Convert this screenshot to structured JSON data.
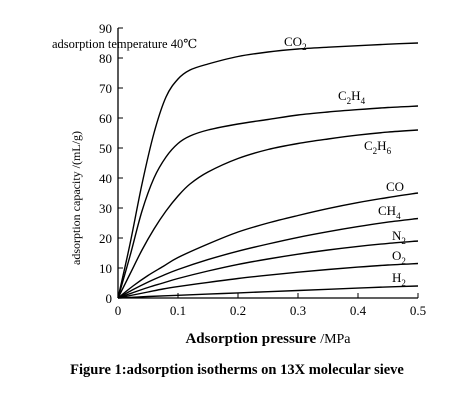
{
  "chart_data": {
    "type": "line",
    "caption": "Figure 1:adsorption isotherms on 13X molecular sieve",
    "annotation": "adsorption temperature 40℃",
    "xlabel": "Adsorption pressure",
    "xunit": "/MPa",
    "ylabel": "adsorption capacity /(mL/g)",
    "xlim": [
      0,
      0.5
    ],
    "ylim": [
      0,
      90
    ],
    "xticks": [
      0,
      0.1,
      0.2,
      0.3,
      0.4,
      0.5
    ],
    "xtick_labels": [
      "0",
      "0.1",
      "0.2",
      "0.3",
      "0.4",
      "0.5"
    ],
    "yticks": [
      0,
      10,
      20,
      30,
      40,
      50,
      60,
      70,
      80,
      90
    ],
    "ytick_labels": [
      "0",
      "10",
      "20",
      "30",
      "40",
      "50",
      "60",
      "70",
      "80",
      "90"
    ],
    "grid": false,
    "legend": "inline labels at curve ends",
    "series": [
      {
        "name": "CO2",
        "base": "CO",
        "subscript": "2",
        "x": [
          0,
          0.02,
          0.04,
          0.06,
          0.08,
          0.1,
          0.12,
          0.15,
          0.2,
          0.25,
          0.3,
          0.35,
          0.4,
          0.45,
          0.5
        ],
        "y": [
          0,
          18,
          38,
          55,
          67,
          73,
          76,
          78,
          80.5,
          82,
          83,
          83.6,
          84.1,
          84.6,
          85
        ]
      },
      {
        "name": "C2H4",
        "base": "C",
        "subscript": "2",
        "base2": "H",
        "subscript2": "4",
        "x": [
          0,
          0.02,
          0.04,
          0.06,
          0.08,
          0.1,
          0.12,
          0.15,
          0.2,
          0.25,
          0.3,
          0.35,
          0.4,
          0.45,
          0.5
        ],
        "y": [
          0,
          14,
          29,
          40,
          47,
          51.5,
          54,
          56,
          58,
          59.5,
          61,
          62,
          62.8,
          63.5,
          64
        ]
      },
      {
        "name": "C2H6",
        "base": "C",
        "subscript": "2",
        "base2": "H",
        "subscript2": "6",
        "x": [
          0,
          0.02,
          0.04,
          0.06,
          0.08,
          0.1,
          0.12,
          0.15,
          0.2,
          0.25,
          0.3,
          0.35,
          0.4,
          0.45,
          0.5
        ],
        "y": [
          0,
          8,
          16,
          23,
          29,
          34,
          38,
          42,
          46.5,
          49.5,
          51.5,
          53,
          54.3,
          55.3,
          56
        ]
      },
      {
        "name": "CO",
        "x": [
          0,
          0.025,
          0.05,
          0.075,
          0.1,
          0.15,
          0.2,
          0.25,
          0.3,
          0.35,
          0.4,
          0.45,
          0.5
        ],
        "y": [
          0,
          4,
          7.5,
          10.5,
          13.5,
          18,
          22,
          25,
          27.5,
          29.8,
          31.8,
          33.5,
          35
        ]
      },
      {
        "name": "CH4",
        "base": "CH",
        "subscript": "4",
        "x": [
          0,
          0.025,
          0.05,
          0.075,
          0.1,
          0.15,
          0.2,
          0.25,
          0.3,
          0.35,
          0.4,
          0.45,
          0.5
        ],
        "y": [
          0,
          2.8,
          5.3,
          7.5,
          9.5,
          12.8,
          15.6,
          18,
          20.2,
          22.1,
          23.8,
          25.3,
          26.5
        ]
      },
      {
        "name": "N2",
        "base": "N",
        "subscript": "2",
        "x": [
          0,
          0.025,
          0.05,
          0.075,
          0.1,
          0.15,
          0.2,
          0.25,
          0.3,
          0.35,
          0.4,
          0.45,
          0.5
        ],
        "y": [
          0,
          1.8,
          3.5,
          5,
          6.5,
          9,
          11.2,
          13,
          14.6,
          16,
          17.2,
          18.2,
          19
        ]
      },
      {
        "name": "O2",
        "base": "O",
        "subscript": "2",
        "x": [
          0,
          0.025,
          0.05,
          0.075,
          0.1,
          0.15,
          0.2,
          0.25,
          0.3,
          0.35,
          0.4,
          0.45,
          0.5
        ],
        "y": [
          0,
          1,
          2,
          3,
          3.8,
          5.2,
          6.5,
          7.6,
          8.6,
          9.5,
          10.3,
          11,
          11.5
        ]
      },
      {
        "name": "H2",
        "base": "H",
        "subscript": "2",
        "x": [
          0,
          0.05,
          0.1,
          0.15,
          0.2,
          0.25,
          0.3,
          0.35,
          0.4,
          0.45,
          0.5
        ],
        "y": [
          0,
          0.5,
          0.9,
          1.3,
          1.7,
          2.1,
          2.5,
          2.9,
          3.3,
          3.7,
          4
        ]
      }
    ]
  }
}
